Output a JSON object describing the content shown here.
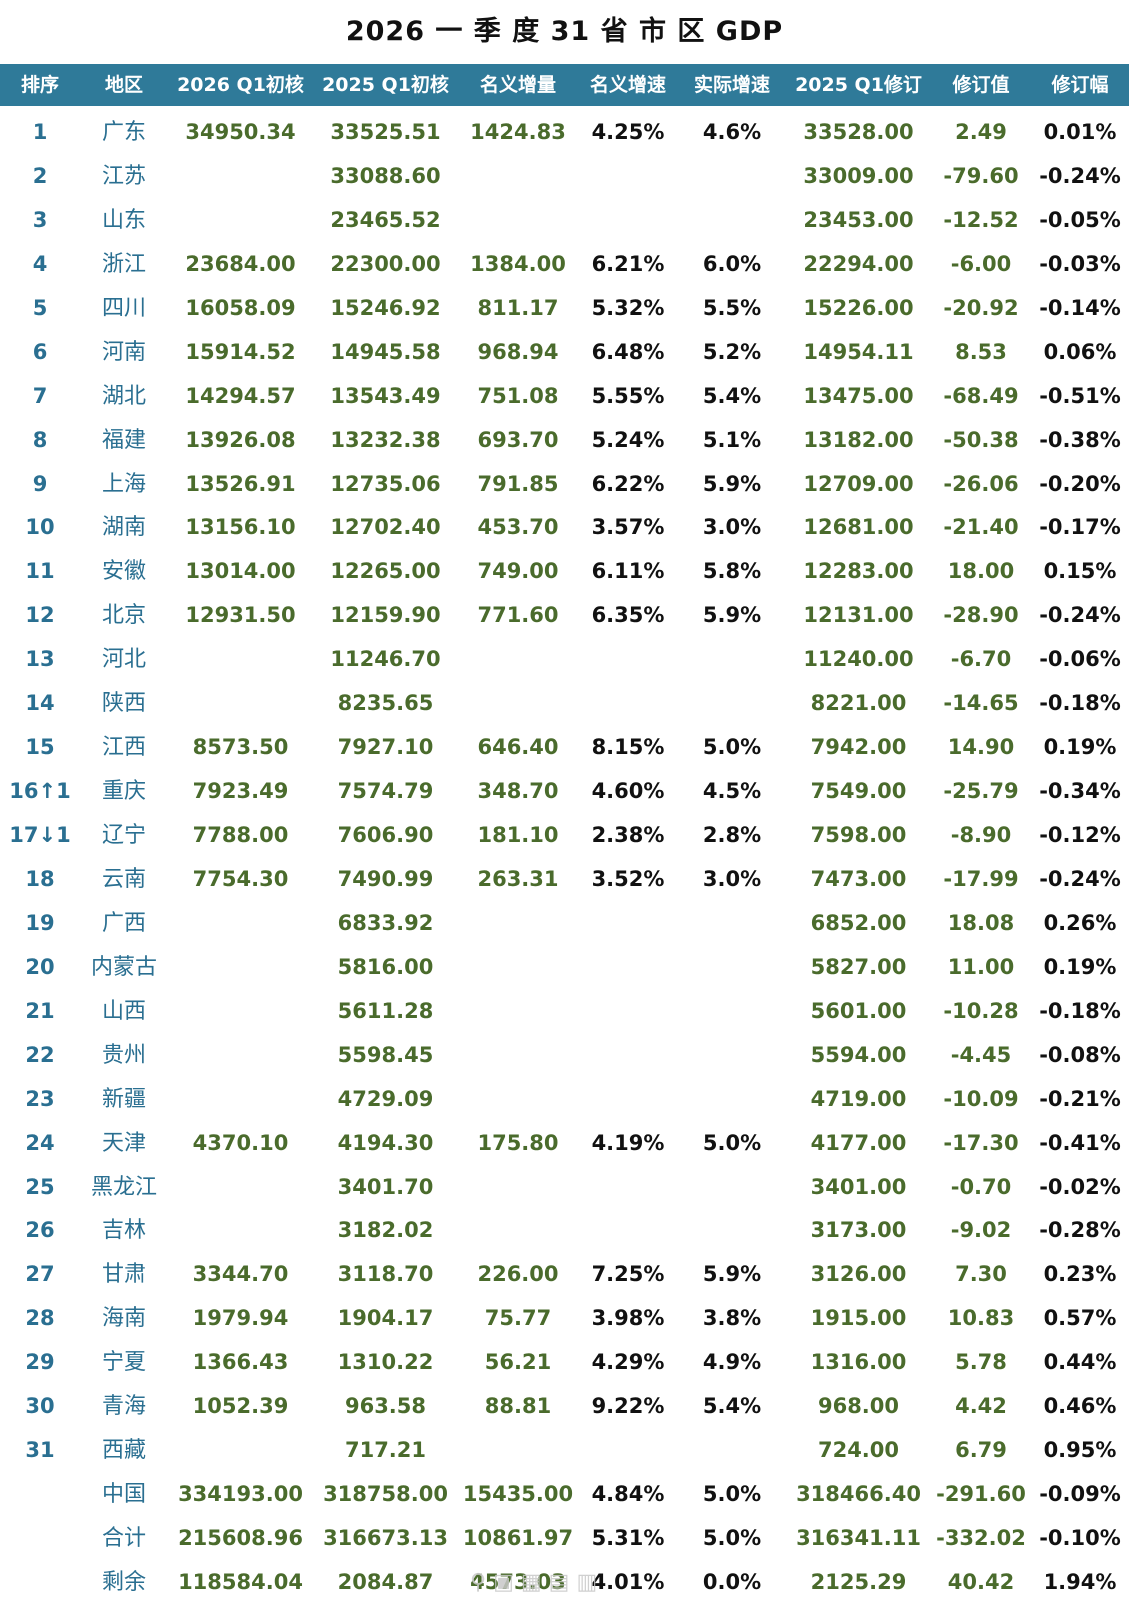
{
  "title": "2026 一 季 度 31 省 市 区 GDP",
  "headers": [
    "排序",
    "地区",
    "2026 Q1初核",
    "2025 Q1初核",
    "名义增量",
    "名义增速",
    "实际增速",
    "2025 Q1修订",
    "修订值",
    "修订幅"
  ],
  "rows": [
    {
      "rank": "1",
      "region": "广东",
      "q1_2026": "34950.34",
      "q1_2025": "33525.51",
      "nominal_inc": "1424.83",
      "nominal_rate": "4.25%",
      "real_rate": "4.6%",
      "rev_2025": "33528.00",
      "rev_val": "2.49",
      "rev_pct": "0.01%"
    },
    {
      "rank": "2",
      "region": "江苏",
      "q1_2026": "",
      "q1_2025": "33088.60",
      "nominal_inc": "",
      "nominal_rate": "",
      "real_rate": "",
      "rev_2025": "33009.00",
      "rev_val": "-79.60",
      "rev_pct": "-0.24%"
    },
    {
      "rank": "3",
      "region": "山东",
      "q1_2026": "",
      "q1_2025": "23465.52",
      "nominal_inc": "",
      "nominal_rate": "",
      "real_rate": "",
      "rev_2025": "23453.00",
      "rev_val": "-12.52",
      "rev_pct": "-0.05%"
    },
    {
      "rank": "4",
      "region": "浙江",
      "q1_2026": "23684.00",
      "q1_2025": "22300.00",
      "nominal_inc": "1384.00",
      "nominal_rate": "6.21%",
      "real_rate": "6.0%",
      "rev_2025": "22294.00",
      "rev_val": "-6.00",
      "rev_pct": "-0.03%"
    },
    {
      "rank": "5",
      "region": "四川",
      "q1_2026": "16058.09",
      "q1_2025": "15246.92",
      "nominal_inc": "811.17",
      "nominal_rate": "5.32%",
      "real_rate": "5.5%",
      "rev_2025": "15226.00",
      "rev_val": "-20.92",
      "rev_pct": "-0.14%"
    },
    {
      "rank": "6",
      "region": "河南",
      "q1_2026": "15914.52",
      "q1_2025": "14945.58",
      "nominal_inc": "968.94",
      "nominal_rate": "6.48%",
      "real_rate": "5.2%",
      "rev_2025": "14954.11",
      "rev_val": "8.53",
      "rev_pct": "0.06%"
    },
    {
      "rank": "7",
      "region": "湖北",
      "q1_2026": "14294.57",
      "q1_2025": "13543.49",
      "nominal_inc": "751.08",
      "nominal_rate": "5.55%",
      "real_rate": "5.4%",
      "rev_2025": "13475.00",
      "rev_val": "-68.49",
      "rev_pct": "-0.51%"
    },
    {
      "rank": "8",
      "region": "福建",
      "q1_2026": "13926.08",
      "q1_2025": "13232.38",
      "nominal_inc": "693.70",
      "nominal_rate": "5.24%",
      "real_rate": "5.1%",
      "rev_2025": "13182.00",
      "rev_val": "-50.38",
      "rev_pct": "-0.38%"
    },
    {
      "rank": "9",
      "region": "上海",
      "q1_2026": "13526.91",
      "q1_2025": "12735.06",
      "nominal_inc": "791.85",
      "nominal_rate": "6.22%",
      "real_rate": "5.9%",
      "rev_2025": "12709.00",
      "rev_val": "-26.06",
      "rev_pct": "-0.20%"
    },
    {
      "rank": "10",
      "region": "湖南",
      "q1_2026": "13156.10",
      "q1_2025": "12702.40",
      "nominal_inc": "453.70",
      "nominal_rate": "3.57%",
      "real_rate": "3.0%",
      "rev_2025": "12681.00",
      "rev_val": "-21.40",
      "rev_pct": "-0.17%"
    },
    {
      "rank": "11",
      "region": "安徽",
      "q1_2026": "13014.00",
      "q1_2025": "12265.00",
      "nominal_inc": "749.00",
      "nominal_rate": "6.11%",
      "real_rate": "5.8%",
      "rev_2025": "12283.00",
      "rev_val": "18.00",
      "rev_pct": "0.15%"
    },
    {
      "rank": "12",
      "region": "北京",
      "q1_2026": "12931.50",
      "q1_2025": "12159.90",
      "nominal_inc": "771.60",
      "nominal_rate": "6.35%",
      "real_rate": "5.9%",
      "rev_2025": "12131.00",
      "rev_val": "-28.90",
      "rev_pct": "-0.24%"
    },
    {
      "rank": "13",
      "region": "河北",
      "q1_2026": "",
      "q1_2025": "11246.70",
      "nominal_inc": "",
      "nominal_rate": "",
      "real_rate": "",
      "rev_2025": "11240.00",
      "rev_val": "-6.70",
      "rev_pct": "-0.06%"
    },
    {
      "rank": "14",
      "region": "陕西",
      "q1_2026": "",
      "q1_2025": "8235.65",
      "nominal_inc": "",
      "nominal_rate": "",
      "real_rate": "",
      "rev_2025": "8221.00",
      "rev_val": "-14.65",
      "rev_pct": "-0.18%"
    },
    {
      "rank": "15",
      "region": "江西",
      "q1_2026": "8573.50",
      "q1_2025": "7927.10",
      "nominal_inc": "646.40",
      "nominal_rate": "8.15%",
      "real_rate": "5.0%",
      "rev_2025": "7942.00",
      "rev_val": "14.90",
      "rev_pct": "0.19%"
    },
    {
      "rank": "16↑1",
      "region": "重庆",
      "q1_2026": "7923.49",
      "q1_2025": "7574.79",
      "nominal_inc": "348.70",
      "nominal_rate": "4.60%",
      "real_rate": "4.5%",
      "rev_2025": "7549.00",
      "rev_val": "-25.79",
      "rev_pct": "-0.34%"
    },
    {
      "rank": "17↓1",
      "region": "辽宁",
      "q1_2026": "7788.00",
      "q1_2025": "7606.90",
      "nominal_inc": "181.10",
      "nominal_rate": "2.38%",
      "real_rate": "2.8%",
      "rev_2025": "7598.00",
      "rev_val": "-8.90",
      "rev_pct": "-0.12%"
    },
    {
      "rank": "18",
      "region": "云南",
      "q1_2026": "7754.30",
      "q1_2025": "7490.99",
      "nominal_inc": "263.31",
      "nominal_rate": "3.52%",
      "real_rate": "3.0%",
      "rev_2025": "7473.00",
      "rev_val": "-17.99",
      "rev_pct": "-0.24%"
    },
    {
      "rank": "19",
      "region": "广西",
      "q1_2026": "",
      "q1_2025": "6833.92",
      "nominal_inc": "",
      "nominal_rate": "",
      "real_rate": "",
      "rev_2025": "6852.00",
      "rev_val": "18.08",
      "rev_pct": "0.26%"
    },
    {
      "rank": "20",
      "region": "内蒙古",
      "q1_2026": "",
      "q1_2025": "5816.00",
      "nominal_inc": "",
      "nominal_rate": "",
      "real_rate": "",
      "rev_2025": "5827.00",
      "rev_val": "11.00",
      "rev_pct": "0.19%"
    },
    {
      "rank": "21",
      "region": "山西",
      "q1_2026": "",
      "q1_2025": "5611.28",
      "nominal_inc": "",
      "nominal_rate": "",
      "real_rate": "",
      "rev_2025": "5601.00",
      "rev_val": "-10.28",
      "rev_pct": "-0.18%"
    },
    {
      "rank": "22",
      "region": "贵州",
      "q1_2026": "",
      "q1_2025": "5598.45",
      "nominal_inc": "",
      "nominal_rate": "",
      "real_rate": "",
      "rev_2025": "5594.00",
      "rev_val": "-4.45",
      "rev_pct": "-0.08%"
    },
    {
      "rank": "23",
      "region": "新疆",
      "q1_2026": "",
      "q1_2025": "4729.09",
      "nominal_inc": "",
      "nominal_rate": "",
      "real_rate": "",
      "rev_2025": "4719.00",
      "rev_val": "-10.09",
      "rev_pct": "-0.21%"
    },
    {
      "rank": "24",
      "region": "天津",
      "q1_2026": "4370.10",
      "q1_2025": "4194.30",
      "nominal_inc": "175.80",
      "nominal_rate": "4.19%",
      "real_rate": "5.0%",
      "rev_2025": "4177.00",
      "rev_val": "-17.30",
      "rev_pct": "-0.41%"
    },
    {
      "rank": "25",
      "region": "黑龙江",
      "q1_2026": "",
      "q1_2025": "3401.70",
      "nominal_inc": "",
      "nominal_rate": "",
      "real_rate": "",
      "rev_2025": "3401.00",
      "rev_val": "-0.70",
      "rev_pct": "-0.02%"
    },
    {
      "rank": "26",
      "region": "吉林",
      "q1_2026": "",
      "q1_2025": "3182.02",
      "nominal_inc": "",
      "nominal_rate": "",
      "real_rate": "",
      "rev_2025": "3173.00",
      "rev_val": "-9.02",
      "rev_pct": "-0.28%"
    },
    {
      "rank": "27",
      "region": "甘肃",
      "q1_2026": "3344.70",
      "q1_2025": "3118.70",
      "nominal_inc": "226.00",
      "nominal_rate": "7.25%",
      "real_rate": "5.9%",
      "rev_2025": "3126.00",
      "rev_val": "7.30",
      "rev_pct": "0.23%"
    },
    {
      "rank": "28",
      "region": "海南",
      "q1_2026": "1979.94",
      "q1_2025": "1904.17",
      "nominal_inc": "75.77",
      "nominal_rate": "3.98%",
      "real_rate": "3.8%",
      "rev_2025": "1915.00",
      "rev_val": "10.83",
      "rev_pct": "0.57%"
    },
    {
      "rank": "29",
      "region": "宁夏",
      "q1_2026": "1366.43",
      "q1_2025": "1310.22",
      "nominal_inc": "56.21",
      "nominal_rate": "4.29%",
      "real_rate": "4.9%",
      "rev_2025": "1316.00",
      "rev_val": "5.78",
      "rev_pct": "0.44%"
    },
    {
      "rank": "30",
      "region": "青海",
      "q1_2026": "1052.39",
      "q1_2025": "963.58",
      "nominal_inc": "88.81",
      "nominal_rate": "9.22%",
      "real_rate": "5.4%",
      "rev_2025": "968.00",
      "rev_val": "4.42",
      "rev_pct": "0.46%"
    },
    {
      "rank": "31",
      "region": "西藏",
      "q1_2026": "",
      "q1_2025": "717.21",
      "nominal_inc": "",
      "nominal_rate": "",
      "real_rate": "",
      "rev_2025": "724.00",
      "rev_val": "6.79",
      "rev_pct": "0.95%"
    },
    {
      "rank": "",
      "region": "中国",
      "q1_2026": "334193.00",
      "q1_2025": "318758.00",
      "nominal_inc": "15435.00",
      "nominal_rate": "4.84%",
      "real_rate": "5.0%",
      "rev_2025": "318466.40",
      "rev_val": "-291.60",
      "rev_pct": "-0.09%"
    },
    {
      "rank": "",
      "region": "合计",
      "q1_2026": "215608.96",
      "q1_2025": "316673.13",
      "nominal_inc": "10861.97",
      "nominal_rate": "5.31%",
      "real_rate": "5.0%",
      "rev_2025": "316341.11",
      "rev_val": "-332.02",
      "rev_pct": "-0.10%"
    },
    {
      "rank": "",
      "region": "剩余",
      "q1_2026": "118584.04",
      "q1_2025": "2084.87",
      "nominal_inc": "4573.03",
      "nominal_rate": "4.01%",
      "real_rate": "0.0%",
      "rev_2025": "2125.29",
      "rev_val": "40.42",
      "rev_pct": "1.94%"
    }
  ],
  "colors": {
    "header_bg": "#2f7a99",
    "rank_text": "#2a6f91",
    "value_green": "#4a6b2c",
    "value_dark": "#111111"
  }
}
